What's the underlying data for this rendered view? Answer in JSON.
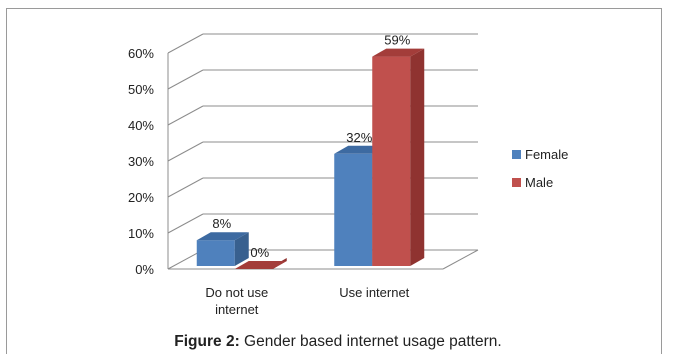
{
  "chart_data": {
    "type": "bar",
    "title": "",
    "xlabel": "",
    "ylabel": "",
    "categories": [
      [
        "Do not use",
        "internet"
      ],
      [
        "Use internet"
      ]
    ],
    "series": [
      {
        "name": "Female",
        "color": "#4f81bd",
        "side_color": "#38608f",
        "top_color": "#3d6aa1",
        "values": [
          8,
          32
        ]
      },
      {
        "name": "Male",
        "color": "#c0504d",
        "side_color": "#8f3330",
        "top_color": "#a33d3a",
        "values": [
          0,
          59
        ]
      }
    ],
    "data_labels": [
      [
        "8%",
        "0%"
      ],
      [
        "32%",
        "59%"
      ]
    ],
    "ylim": [
      0,
      60
    ],
    "yticks": [
      0,
      10,
      20,
      30,
      40,
      50,
      60
    ],
    "ytick_labels": [
      "0%",
      "10%",
      "20%",
      "30%",
      "40%",
      "50%",
      "60%"
    ],
    "grid": true,
    "legend_position": "right",
    "style": "3d-column"
  },
  "caption": {
    "label": "Figure 2:",
    "text": " Gender based internet usage pattern."
  }
}
